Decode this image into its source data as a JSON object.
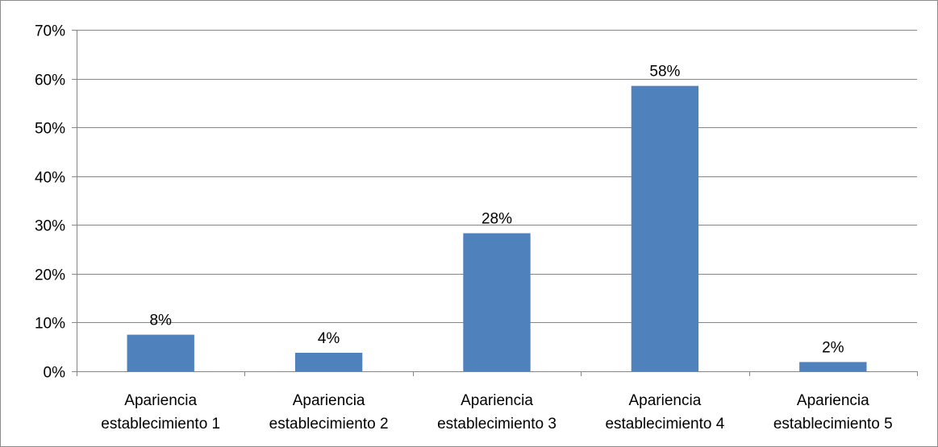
{
  "chart_data": {
    "type": "bar",
    "title": "",
    "xlabel": "",
    "ylabel": "",
    "categories": [
      [
        "Apariencia",
        "establecimiento 1"
      ],
      [
        "Apariencia",
        "establecimiento 2"
      ],
      [
        "Apariencia",
        "establecimiento 3"
      ],
      [
        "Apariencia",
        "establecimiento 4"
      ],
      [
        "Apariencia",
        "establecimiento 5"
      ]
    ],
    "values": [
      7.5,
      3.8,
      28.3,
      58.5,
      1.9
    ],
    "data_labels": [
      "8%",
      "4%",
      "28%",
      "58%",
      "2%"
    ],
    "ylim": [
      0,
      70
    ],
    "yticks": [
      0,
      10,
      20,
      30,
      40,
      50,
      60,
      70
    ],
    "ytick_labels": [
      "0%",
      "10%",
      "20%",
      "30%",
      "40%",
      "50%",
      "60%",
      "70%"
    ],
    "grid": true,
    "legend": "none",
    "colors": {
      "bar": "#4F81BD",
      "gridline": "#868686",
      "axis": "#868686",
      "border": "#8c8c8c"
    }
  }
}
